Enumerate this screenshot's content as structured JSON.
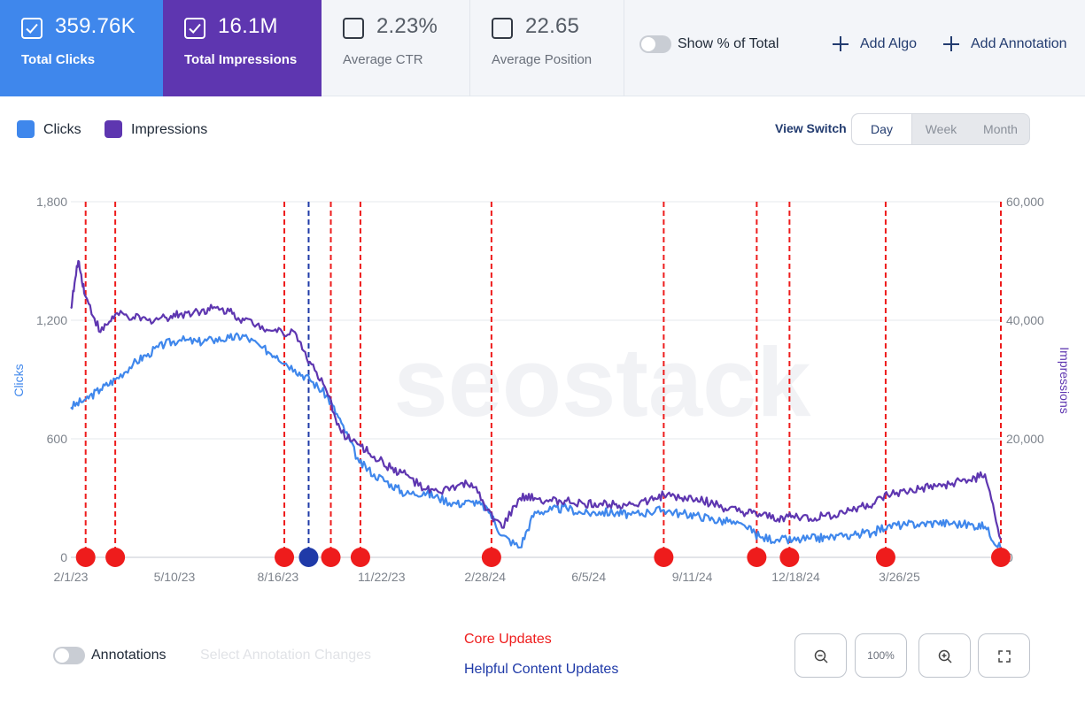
{
  "metrics": [
    {
      "value": "359.76K",
      "label": "Total Clicks",
      "checked": true
    },
    {
      "value": "16.1M",
      "label": "Total Impressions",
      "checked": true
    },
    {
      "value": "2.23%",
      "label": "Average CTR",
      "checked": false
    },
    {
      "value": "22.65",
      "label": "Average Position",
      "checked": false
    }
  ],
  "toolbar": {
    "show_percent_label": "Show % of Total",
    "add_algo_label": "Add Algo",
    "add_annotation_label": "Add Annotation"
  },
  "legend": {
    "clicks_label": "Clicks",
    "impressions_label": "Impressions"
  },
  "view_switch": {
    "label": "View Switch",
    "options": [
      "Day",
      "Week",
      "Month"
    ],
    "selected": "Day"
  },
  "bottom": {
    "annotations_label": "Annotations",
    "select_changes_placeholder": "Select Annotation Changes",
    "core_updates_label": "Core Updates",
    "helpful_content_label": "Helpful Content Updates",
    "zoom_value": "100%"
  },
  "colors": {
    "clicks": "#3f87ec",
    "impressions": "#5e36b0",
    "core_update": "#ee1c1c",
    "helpful_content_update": "#1f3aa8"
  },
  "watermark": "seostack",
  "chart_data": {
    "type": "line",
    "x_start": "2/1/23",
    "x_end": "6/30/25",
    "xticks": [
      "2/1/23",
      "5/10/23",
      "8/16/23",
      "11/22/23",
      "2/28/24",
      "6/5/24",
      "9/11/24",
      "12/18/24",
      "3/26/25"
    ],
    "ylabel_left": "Clicks",
    "ylabel_right": "Impressions",
    "ylim_left": [
      0,
      1800
    ],
    "ylim_right": [
      0,
      60000
    ],
    "yticks_left": [
      "0",
      "600",
      "1,200",
      "1,800"
    ],
    "yticks_right": [
      "0",
      "20,000",
      "40,000",
      "60,000"
    ],
    "grid": true,
    "series": [
      {
        "name": "Clicks",
        "axis": "left",
        "x": [
          "2/1/23",
          "2/15/23",
          "3/1/23",
          "3/15/23",
          "4/1/23",
          "4/15/23",
          "5/1/23",
          "5/15/23",
          "6/1/23",
          "6/15/23",
          "7/1/23",
          "7/15/23",
          "8/1/23",
          "8/15/23",
          "9/1/23",
          "9/15/23",
          "10/1/23",
          "10/15/23",
          "11/1/23",
          "11/15/23",
          "12/1/23",
          "12/15/23",
          "1/1/24",
          "1/15/24",
          "2/1/24",
          "2/15/24",
          "3/1/24",
          "3/15/24",
          "4/1/24",
          "4/15/24",
          "5/1/24",
          "5/15/24",
          "6/1/24",
          "6/15/24",
          "7/1/24",
          "7/15/24",
          "8/1/24",
          "8/15/24",
          "9/1/24",
          "9/15/24",
          "10/1/24",
          "10/15/24",
          "11/1/24",
          "11/15/24",
          "12/1/24",
          "12/15/24",
          "1/1/25",
          "1/15/25",
          "2/1/25",
          "2/15/25",
          "3/1/25",
          "3/15/25",
          "4/1/25",
          "4/15/25",
          "5/1/25",
          "5/15/25",
          "6/1/25",
          "6/15/25",
          "6/30/25"
        ],
        "y": [
          760,
          800,
          850,
          900,
          980,
          1030,
          1080,
          1100,
          1090,
          1100,
          1110,
          1120,
          1060,
          1020,
          950,
          900,
          820,
          680,
          480,
          420,
          370,
          320,
          330,
          300,
          270,
          280,
          250,
          110,
          50,
          230,
          240,
          250,
          220,
          230,
          225,
          215,
          230,
          240,
          220,
          215,
          190,
          180,
          150,
          100,
          90,
          85,
          95,
          100,
          105,
          120,
          125,
          160,
          165,
          170,
          175,
          170,
          165,
          155,
          40
        ]
      },
      {
        "name": "Impressions",
        "axis": "right",
        "x": [
          "2/1/23",
          "2/8/23",
          "2/15/23",
          "3/1/23",
          "3/15/23",
          "4/1/23",
          "4/15/23",
          "5/1/23",
          "5/15/23",
          "6/1/23",
          "6/15/23",
          "7/1/23",
          "7/15/23",
          "8/1/23",
          "8/15/23",
          "9/1/23",
          "9/15/23",
          "10/1/23",
          "10/15/23",
          "11/1/23",
          "11/15/23",
          "12/1/23",
          "12/15/23",
          "1/1/24",
          "1/15/24",
          "2/1/24",
          "2/15/24",
          "3/1/24",
          "3/15/24",
          "4/1/24",
          "4/15/24",
          "5/1/24",
          "5/15/24",
          "6/1/24",
          "6/15/24",
          "7/1/24",
          "7/15/24",
          "8/1/24",
          "8/15/24",
          "9/1/24",
          "9/15/24",
          "10/1/24",
          "10/15/24",
          "11/1/24",
          "11/15/24",
          "12/1/24",
          "12/15/24",
          "1/1/25",
          "1/15/25",
          "2/1/25",
          "2/15/25",
          "3/1/25",
          "3/15/25",
          "4/1/25",
          "4/15/25",
          "5/1/25",
          "5/15/25",
          "6/1/25",
          "6/15/25",
          "6/30/25"
        ],
        "y": [
          42000,
          50000,
          44000,
          38000,
          41000,
          40500,
          40000,
          40500,
          41000,
          41500,
          42000,
          41500,
          40000,
          39000,
          38000,
          38000,
          33000,
          28000,
          21000,
          19000,
          17000,
          15000,
          14000,
          11500,
          11000,
          12000,
          12500,
          8000,
          5000,
          10000,
          10000,
          9500,
          9500,
          9000,
          9000,
          9000,
          9000,
          9500,
          10500,
          10000,
          10000,
          9000,
          8000,
          7500,
          7000,
          6500,
          7000,
          6500,
          7000,
          7500,
          8500,
          9000,
          10500,
          11000,
          11500,
          12000,
          12500,
          13000,
          14000,
          3000
        ]
      }
    ],
    "annotations": [
      {
        "date": "2/15/23",
        "type": "Core Updates"
      },
      {
        "date": "3/15/23",
        "type": "Core Updates"
      },
      {
        "date": "8/22/23",
        "type": "Core Updates"
      },
      {
        "date": "9/14/23",
        "type": "Helpful Content Updates"
      },
      {
        "date": "10/5/23",
        "type": "Core Updates"
      },
      {
        "date": "11/2/23",
        "type": "Core Updates"
      },
      {
        "date": "3/5/24",
        "type": "Core Updates"
      },
      {
        "date": "8/15/24",
        "type": "Core Updates"
      },
      {
        "date": "11/11/24",
        "type": "Core Updates"
      },
      {
        "date": "12/12/24",
        "type": "Core Updates"
      },
      {
        "date": "3/13/25",
        "type": "Core Updates"
      },
      {
        "date": "6/30/25",
        "type": "Core Updates"
      }
    ]
  }
}
